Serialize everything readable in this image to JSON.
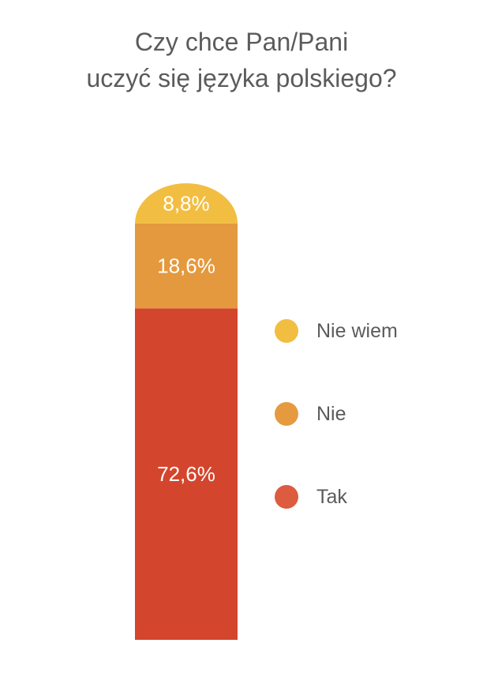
{
  "chart_data": {
    "type": "bar",
    "stacked": true,
    "title": [
      "Czy chce Pan/Pani",
      "uczyć się języka polskiego?"
    ],
    "unit": "%",
    "ylim": [
      0,
      100
    ],
    "grid": false,
    "legend_position": "right",
    "series": [
      {
        "name": "Tak",
        "value": 72.6,
        "label": "72,6%",
        "color": "#d4452d",
        "legend_color": "#dd5b3f"
      },
      {
        "name": "Nie",
        "value": 18.6,
        "label": "18,6%",
        "color": "#e4993e",
        "legend_color": "#e59a40"
      },
      {
        "name": "Nie wiem",
        "value": 8.8,
        "label": "8,8%",
        "color": "#f2be42",
        "legend_color": "#f2be42"
      }
    ],
    "legend_order": [
      "Nie wiem",
      "Nie",
      "Tak"
    ]
  }
}
